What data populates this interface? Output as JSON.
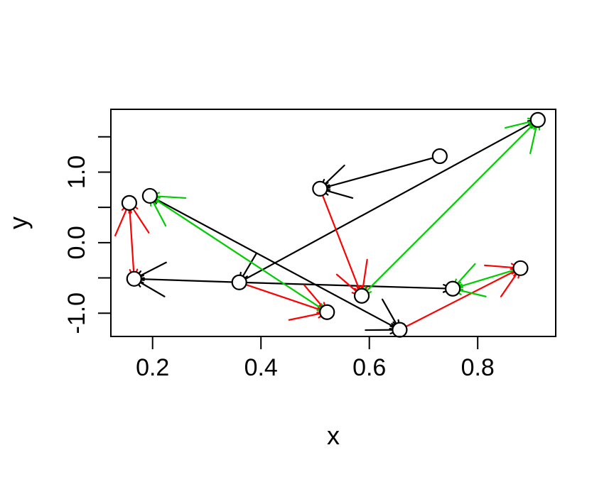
{
  "chart_data": {
    "type": "scatter",
    "title": "",
    "xlabel": "x",
    "ylabel": "y",
    "xlim": [
      0.123,
      0.944
    ],
    "ylim": [
      -1.33,
      1.89
    ],
    "grid": false,
    "x_ticks": [
      {
        "v": 0.2,
        "label": "0.2"
      },
      {
        "v": 0.4,
        "label": "0.4"
      },
      {
        "v": 0.6,
        "label": "0.6"
      },
      {
        "v": 0.8,
        "label": "0.8"
      }
    ],
    "y_ticks": [
      {
        "v": 1.5,
        "label": ""
      },
      {
        "v": 1.0,
        "label": "1.0"
      },
      {
        "v": 0.5,
        "label": ""
      },
      {
        "v": 0.0,
        "label": "0.0"
      },
      {
        "v": -0.5,
        "label": ""
      },
      {
        "v": -1.0,
        "label": "-1.0"
      }
    ],
    "colors": {
      "black": "#000000",
      "red": "#FF0000",
      "green": "#00CD00"
    },
    "points": {
      "p1": {
        "x": 0.157,
        "y": 0.563
      },
      "p2": {
        "x": 0.195,
        "y": 0.663
      },
      "p3": {
        "x": 0.911,
        "y": 1.74
      },
      "p4": {
        "x": 0.73,
        "y": 1.226
      },
      "p5": {
        "x": 0.509,
        "y": 0.764
      },
      "p6": {
        "x": 0.36,
        "y": -0.563
      },
      "p7": {
        "x": 0.166,
        "y": -0.513
      },
      "p8": {
        "x": 0.522,
        "y": -0.985
      },
      "p9": {
        "x": 0.586,
        "y": -0.754
      },
      "p10": {
        "x": 0.656,
        "y": -1.236
      },
      "p11": {
        "x": 0.754,
        "y": -0.653
      },
      "p12": {
        "x": 0.879,
        "y": -0.362
      }
    },
    "arrows": [
      {
        "tail": "p4",
        "head": "p5",
        "color": "black"
      },
      {
        "tail": "p6",
        "head": "p3",
        "color": "black"
      },
      {
        "tail": "p10",
        "head": "p2",
        "color": "black",
        "double": true
      },
      {
        "tail": "p6",
        "head": "p7",
        "color": "black"
      },
      {
        "tail": "p6",
        "head": "p11",
        "color": "black"
      },
      {
        "tail": [
          0.225,
          -0.281
        ],
        "head": "p7",
        "color": "black"
      },
      {
        "tail": [
          0.222,
          -0.764
        ],
        "head": "p7",
        "color": "black"
      },
      {
        "tail": [
          0.554,
          1.095
        ],
        "head": "p5",
        "color": "black"
      },
      {
        "tail": [
          0.569,
          0.633
        ],
        "head": "p5",
        "color": "black"
      },
      {
        "tail": [
          0.391,
          -0.161
        ],
        "head": "p6",
        "color": "black"
      },
      {
        "tail": [
          0.624,
          -0.804
        ],
        "head": "p10",
        "color": "black"
      },
      {
        "tail": [
          0.593,
          -1.24
        ],
        "head": "p10",
        "color": "black"
      },
      {
        "tail": "p1",
        "head": "p7",
        "color": "red"
      },
      {
        "tail": "p5",
        "head": "p9",
        "color": "red"
      },
      {
        "tail": "p6",
        "head": "p8",
        "color": "red"
      },
      {
        "tail": "p10",
        "head": "p12",
        "color": "red"
      },
      {
        "tail": [
          0.131,
          0.1
        ],
        "head": "p1",
        "color": "red"
      },
      {
        "tail": [
          0.193,
          0.141
        ],
        "head": "p1",
        "color": "red"
      },
      {
        "tail": [
          0.596,
          -0.241
        ],
        "head": "p9",
        "color": "red"
      },
      {
        "tail": [
          0.54,
          -0.452
        ],
        "head": "p9",
        "color": "red"
      },
      {
        "tail": [
          0.48,
          -0.603
        ],
        "head": "p8",
        "color": "red"
      },
      {
        "tail": [
          0.452,
          -1.096
        ],
        "head": "p8",
        "color": "red"
      },
      {
        "tail": [
          0.813,
          -0.322
        ],
        "head": "p12",
        "color": "red"
      },
      {
        "tail": [
          0.843,
          -0.764
        ],
        "head": "p12",
        "color": "red"
      },
      {
        "tail": "p2",
        "head": "p8",
        "color": "green",
        "double": true
      },
      {
        "tail": "p9",
        "head": "p3",
        "color": "green",
        "double": true
      },
      {
        "tail": "p12",
        "head": "p11",
        "color": "green"
      },
      {
        "tail": [
          0.261,
          0.633
        ],
        "head": "p2",
        "color": "green"
      },
      {
        "tail": [
          0.224,
          0.241
        ],
        "head": "p2",
        "color": "green"
      },
      {
        "tail": [
          0.851,
          1.628
        ],
        "head": "p3",
        "color": "green"
      },
      {
        "tail": [
          0.897,
          1.266
        ],
        "head": "p3",
        "color": "green"
      },
      {
        "tail": [
          0.795,
          -0.302
        ],
        "head": "p11",
        "color": "green"
      },
      {
        "tail": [
          0.815,
          -0.764
        ],
        "head": "p11",
        "color": "green"
      }
    ],
    "point_style": {
      "shape": "open-circle",
      "radius": 10,
      "stroke_width": 2.2
    }
  }
}
